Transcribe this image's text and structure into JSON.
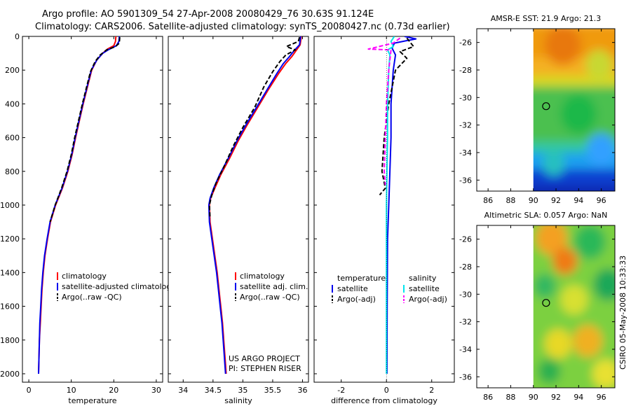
{
  "header": {
    "title_line1": "Argo profile: AO 5901309_54 27-Apr-2008 20080429_76 30.63S 91.124E",
    "title_line2": "Climatology: CARS2006. Satellite-adjusted climatology: synTS_20080427.nc (0.73d earlier)"
  },
  "side_label": "CSIRO 05-May-2008 10:33:33",
  "chart_data": [
    {
      "id": "temperature",
      "type": "line",
      "xlabel": "temperature",
      "ylabel": "",
      "xlim": [
        -1.5,
        31.5
      ],
      "ylim": [
        2050,
        0
      ],
      "xticks": [
        0,
        10,
        20,
        30
      ],
      "yticks": [
        0,
        200,
        400,
        600,
        800,
        1000,
        1200,
        1400,
        1600,
        1800,
        2000
      ],
      "legend": {
        "placement": "lower-right",
        "entries": [
          "climatology",
          "satellite-adjusted climatology",
          "Argo(..raw -QC)"
        ]
      },
      "series": [
        {
          "name": "climatology",
          "color": "#ff0000",
          "style": "solid",
          "points": [
            [
              20.5,
              0
            ],
            [
              20.4,
              30
            ],
            [
              20.0,
              55
            ],
            [
              18.5,
              75
            ],
            [
              17.4,
              100
            ],
            [
              16.0,
              140
            ],
            [
              14.8,
              200
            ],
            [
              13.8,
              300
            ],
            [
              12.8,
              400
            ],
            [
              11.9,
              500
            ],
            [
              11.0,
              600
            ],
            [
              10.2,
              700
            ],
            [
              9.2,
              800
            ],
            [
              7.9,
              900
            ],
            [
              6.3,
              1000
            ],
            [
              5.1,
              1100
            ],
            [
              4.4,
              1200
            ],
            [
              3.8,
              1300
            ],
            [
              3.4,
              1400
            ],
            [
              3.1,
              1500
            ],
            [
              2.9,
              1600
            ],
            [
              2.7,
              1700
            ],
            [
              2.5,
              1800
            ],
            [
              2.4,
              1900
            ],
            [
              2.3,
              2000
            ]
          ]
        },
        {
          "name": "satellite-adjusted climatology",
          "color": "#0000ee",
          "style": "solid",
          "points": [
            [
              21.3,
              0
            ],
            [
              21.2,
              30
            ],
            [
              20.6,
              55
            ],
            [
              18.8,
              78
            ],
            [
              17.4,
              100
            ],
            [
              16.0,
              140
            ],
            [
              14.7,
              200
            ],
            [
              13.7,
              300
            ],
            [
              12.7,
              400
            ],
            [
              11.8,
              500
            ],
            [
              10.9,
              600
            ],
            [
              10.1,
              700
            ],
            [
              9.1,
              800
            ],
            [
              7.8,
              900
            ],
            [
              6.2,
              1000
            ],
            [
              5.0,
              1100
            ],
            [
              4.3,
              1200
            ],
            [
              3.7,
              1300
            ],
            [
              3.3,
              1400
            ],
            [
              3.0,
              1500
            ],
            [
              2.8,
              1600
            ],
            [
              2.6,
              1700
            ],
            [
              2.5,
              1800
            ],
            [
              2.4,
              1900
            ],
            [
              2.3,
              2000
            ]
          ]
        },
        {
          "name": "Argo(..raw -QC)",
          "color": "#000000",
          "style": "dashed",
          "points": [
            [
              21.4,
              5
            ],
            [
              21.3,
              40
            ],
            [
              20.4,
              60
            ],
            [
              18.3,
              80
            ],
            [
              16.8,
              110
            ],
            [
              15.6,
              150
            ],
            [
              14.5,
              210
            ],
            [
              13.6,
              300
            ],
            [
              12.6,
              400
            ],
            [
              11.7,
              500
            ],
            [
              10.8,
              600
            ],
            [
              10.0,
              700
            ],
            [
              9.0,
              800
            ],
            [
              7.7,
              900
            ],
            [
              6.2,
              1000
            ],
            [
              5.0,
              1100
            ]
          ]
        }
      ]
    },
    {
      "id": "salinity",
      "type": "line",
      "xlabel": "salinity",
      "ylabel": "",
      "xlim": [
        33.75,
        36.1
      ],
      "ylim": [
        2050,
        0
      ],
      "xticks": [
        34,
        34.5,
        35,
        35.5,
        36
      ],
      "xtick_labels": [
        "34",
        "34.5",
        "35",
        "35.5",
        "36"
      ],
      "legend": {
        "placement": "lower-right",
        "entries": [
          "climatology",
          "satellite adj. clim.",
          "Argo(..raw -QC)"
        ]
      },
      "annotations": [
        "US ARGO PROJECT",
        "PI: STEPHEN RISER"
      ],
      "series": [
        {
          "name": "climatology",
          "color": "#ff0000",
          "style": "solid",
          "points": [
            [
              35.98,
              0
            ],
            [
              35.96,
              50
            ],
            [
              35.9,
              80
            ],
            [
              35.82,
              120
            ],
            [
              35.72,
              160
            ],
            [
              35.6,
              220
            ],
            [
              35.42,
              320
            ],
            [
              35.25,
              420
            ],
            [
              35.08,
              520
            ],
            [
              34.92,
              620
            ],
            [
              34.78,
              720
            ],
            [
              34.63,
              820
            ],
            [
              34.53,
              900
            ],
            [
              34.46,
              960
            ],
            [
              34.44,
              1000
            ],
            [
              34.45,
              1100
            ],
            [
              34.49,
              1200
            ],
            [
              34.53,
              1300
            ],
            [
              34.57,
              1400
            ],
            [
              34.6,
              1500
            ],
            [
              34.63,
              1600
            ],
            [
              34.66,
              1700
            ],
            [
              34.68,
              1800
            ],
            [
              34.7,
              1900
            ],
            [
              34.72,
              2000
            ]
          ]
        },
        {
          "name": "satellite adj. clim.",
          "color": "#0000ee",
          "style": "solid",
          "points": [
            [
              35.97,
              0
            ],
            [
              35.95,
              50
            ],
            [
              35.87,
              80
            ],
            [
              35.78,
              120
            ],
            [
              35.68,
              160
            ],
            [
              35.57,
              220
            ],
            [
              35.4,
              320
            ],
            [
              35.23,
              420
            ],
            [
              35.06,
              520
            ],
            [
              34.9,
              620
            ],
            [
              34.76,
              720
            ],
            [
              34.61,
              820
            ],
            [
              34.51,
              900
            ],
            [
              34.45,
              960
            ],
            [
              34.43,
              1000
            ],
            [
              34.44,
              1100
            ],
            [
              34.48,
              1200
            ],
            [
              34.52,
              1300
            ],
            [
              34.56,
              1400
            ],
            [
              34.59,
              1500
            ],
            [
              34.62,
              1600
            ],
            [
              34.65,
              1700
            ],
            [
              34.67,
              1800
            ],
            [
              34.69,
              1900
            ],
            [
              34.71,
              2000
            ]
          ]
        },
        {
          "name": "Argo(..raw -QC)",
          "color": "#000000",
          "style": "dashed",
          "points": [
            [
              35.95,
              5
            ],
            [
              35.93,
              30
            ],
            [
              35.73,
              60
            ],
            [
              35.88,
              80
            ],
            [
              35.72,
              110
            ],
            [
              35.62,
              150
            ],
            [
              35.5,
              210
            ],
            [
              35.35,
              300
            ],
            [
              35.2,
              420
            ],
            [
              35.0,
              540
            ],
            [
              34.84,
              650
            ],
            [
              34.7,
              760
            ],
            [
              34.55,
              870
            ],
            [
              34.48,
              940
            ],
            [
              34.44,
              1000
            ],
            [
              34.45,
              1080
            ]
          ]
        }
      ]
    },
    {
      "id": "difference",
      "type": "line",
      "xlabel": "difference from climatology",
      "ylabel": "",
      "xlim": [
        -3.2,
        3.0
      ],
      "ylim": [
        2050,
        0
      ],
      "xticks": [
        -2,
        0,
        2
      ],
      "legend": {
        "placement": "lower-center",
        "groups": [
          {
            "heading": "temperature",
            "entries": [
              "satellite",
              "Argo(-adj)"
            ]
          },
          {
            "heading": "salinity",
            "entries": [
              "satellite",
              "Argo(-adj)"
            ]
          }
        ]
      },
      "series": [
        {
          "name": "satellite",
          "group": "temperature",
          "color": "#0000ee",
          "style": "solid",
          "points": [
            [
              0.8,
              0
            ],
            [
              1.3,
              15
            ],
            [
              0.9,
              25
            ],
            [
              0.35,
              40
            ],
            [
              0.25,
              70
            ],
            [
              0.4,
              110
            ],
            [
              0.3,
              200
            ],
            [
              0.2,
              400
            ],
            [
              0.2,
              600
            ],
            [
              0.15,
              800
            ],
            [
              0.1,
              1000
            ],
            [
              0.05,
              1200
            ],
            [
              0.03,
              1600
            ],
            [
              0.02,
              2000
            ]
          ]
        },
        {
          "name": "Argo(-adj)",
          "group": "temperature",
          "color": "#000000",
          "style": "dashed",
          "points": [
            [
              0.9,
              10
            ],
            [
              1.2,
              60
            ],
            [
              0.6,
              90
            ],
            [
              0.9,
              130
            ],
            [
              0.4,
              200
            ],
            [
              0.1,
              400
            ],
            [
              -0.1,
              600
            ],
            [
              -0.2,
              800
            ],
            [
              -0.05,
              900
            ],
            [
              -0.3,
              940
            ]
          ]
        },
        {
          "name": "satellite",
          "group": "salinity",
          "color": "#00e5ee",
          "style": "solid",
          "points": [
            [
              0.35,
              0
            ],
            [
              0.2,
              30
            ],
            [
              0.3,
              60
            ],
            [
              0.05,
              80
            ],
            [
              0.15,
              110
            ],
            [
              0.1,
              200
            ],
            [
              0.05,
              400
            ],
            [
              0.05,
              600
            ],
            [
              0.02,
              800
            ],
            [
              0.0,
              1000
            ],
            [
              0.0,
              1500
            ],
            [
              0.0,
              2000
            ]
          ]
        },
        {
          "name": "Argo(-adj)",
          "group": "salinity",
          "color": "#ff00ff",
          "style": "dashed",
          "points": [
            [
              0.6,
              10
            ],
            [
              0.3,
              40
            ],
            [
              -0.8,
              75
            ],
            [
              0.2,
              80
            ],
            [
              0.1,
              200
            ],
            [
              0.0,
              400
            ],
            [
              -0.05,
              600
            ],
            [
              -0.1,
              800
            ],
            [
              -0.05,
              880
            ]
          ]
        }
      ]
    },
    {
      "id": "sst_map",
      "type": "heatmap",
      "title": "AMSR-E SST: 21.9 Argo: 21.3",
      "xlim": [
        85,
        97.2
      ],
      "ylim": [
        -36.8,
        -25
      ],
      "xticks": [
        86,
        88,
        90,
        92,
        94,
        96
      ],
      "yticks": [
        -26,
        -28,
        -30,
        -32,
        -34,
        -36
      ],
      "xtick_labels": [
        "86",
        "88",
        "90",
        "92",
        "94",
        "96"
      ],
      "ytick_labels": [
        "-26",
        "-28",
        "-30",
        "-32",
        "-34",
        "-36"
      ],
      "data_xlim": [
        90,
        97.2
      ],
      "marker": [
        91.124,
        -30.63
      ],
      "bands": [
        {
          "lat": -25.0,
          "color": "#f09a10"
        },
        {
          "lat": -27.5,
          "color": "#f4b020"
        },
        {
          "lat": -28.8,
          "color": "#d8d820"
        },
        {
          "lat": -29.6,
          "color": "#4cc050"
        },
        {
          "lat": -33.6,
          "color": "#30c8a0"
        },
        {
          "lat": -34.4,
          "color": "#1ea0f0"
        },
        {
          "lat": -35.6,
          "color": "#1040d0"
        },
        {
          "lat": -36.8,
          "color": "#0a28b0"
        }
      ],
      "blobs": [
        {
          "lon": 92.6,
          "lat": -26.2,
          "r": 1.6,
          "color": "#e8780a"
        },
        {
          "lon": 95.8,
          "lat": -27.6,
          "r": 1.2,
          "color": "#c8d830"
        },
        {
          "lon": 94.0,
          "lat": -31.2,
          "r": 1.6,
          "color": "#1eb84a"
        },
        {
          "lon": 96.0,
          "lat": -33.8,
          "r": 1.3,
          "color": "#30a0ff"
        },
        {
          "lon": 91.8,
          "lat": -34.8,
          "r": 1.0,
          "color": "#26c0c0"
        }
      ]
    },
    {
      "id": "sla_map",
      "type": "heatmap",
      "title": "Altimetric SLA: 0.057 Argo: NaN",
      "xlim": [
        85,
        97.2
      ],
      "ylim": [
        -36.8,
        -25
      ],
      "xticks": [
        86,
        88,
        90,
        92,
        94,
        96
      ],
      "yticks": [
        -26,
        -28,
        -30,
        -32,
        -34,
        -36
      ],
      "xtick_labels": [
        "86",
        "88",
        "90",
        "92",
        "94",
        "96"
      ],
      "ytick_labels": [
        "-26",
        "-28",
        "-30",
        "-32",
        "-34",
        "-36"
      ],
      "data_xlim": [
        90,
        97.2
      ],
      "marker": [
        91.124,
        -30.63
      ],
      "base_color": "#7cd040",
      "blobs": [
        {
          "lon": 91.6,
          "lat": -25.9,
          "r": 1.4,
          "color": "#f4a020"
        },
        {
          "lon": 92.8,
          "lat": -27.6,
          "r": 1.1,
          "color": "#f07a18"
        },
        {
          "lon": 95.0,
          "lat": -26.2,
          "r": 1.4,
          "color": "#2cb858"
        },
        {
          "lon": 96.6,
          "lat": -29.3,
          "r": 1.3,
          "color": "#1aa858"
        },
        {
          "lon": 91.0,
          "lat": -29.4,
          "r": 1.0,
          "color": "#30b860"
        },
        {
          "lon": 93.6,
          "lat": -30.4,
          "r": 1.2,
          "color": "#d8e030"
        },
        {
          "lon": 94.8,
          "lat": -33.4,
          "r": 1.3,
          "color": "#f0b020"
        },
        {
          "lon": 92.2,
          "lat": -33.6,
          "r": 1.2,
          "color": "#e8d828"
        },
        {
          "lon": 91.4,
          "lat": -35.6,
          "r": 1.0,
          "color": "#2cb050"
        },
        {
          "lon": 96.4,
          "lat": -35.8,
          "r": 1.2,
          "color": "#e8e030"
        }
      ]
    }
  ]
}
